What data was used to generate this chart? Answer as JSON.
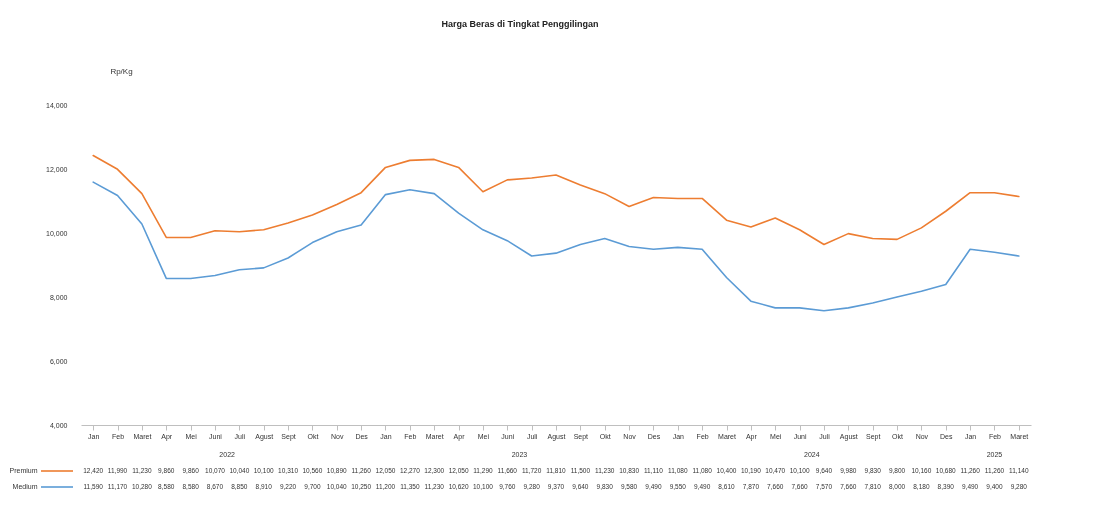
{
  "chart_data": {
    "type": "line",
    "title": "Harga Beras di Tingkat Penggilingan",
    "ylabel": "Rp/Kg",
    "categories": [
      "Jan",
      "Feb",
      "Maret",
      "Apr",
      "Mei",
      "Juni",
      "Juli",
      "Agust",
      "Sept",
      "Okt",
      "Nov",
      "Des",
      "Jan",
      "Feb",
      "Maret",
      "Apr",
      "Mei",
      "Juni",
      "Juli",
      "Agust",
      "Sept",
      "Okt",
      "Nov",
      "Des",
      "Jan",
      "Feb",
      "Maret",
      "Apr",
      "Mei",
      "Juni",
      "Juli",
      "Agust",
      "Sept",
      "Okt",
      "Nov",
      "Des",
      "Jan",
      "Feb",
      "Maret"
    ],
    "series": [
      {
        "name": "Premium",
        "color": "#ed7d31",
        "values": [
          12420,
          11990,
          11230,
          9860,
          9860,
          10070,
          10040,
          10100,
          10310,
          10560,
          10890,
          11260,
          12050,
          12270,
          12300,
          12050,
          11290,
          11660,
          11720,
          11810,
          11500,
          11230,
          10830,
          11110,
          11080,
          11080,
          10400,
          10190,
          10470,
          10100,
          9640,
          9980,
          9830,
          9800,
          10160,
          10680,
          11260,
          11260,
          11140
        ],
        "value_labels": [
          "12,420",
          "11,990",
          "11,230",
          "9,860",
          "9,860",
          "10,070",
          "10,040",
          "10,100",
          "10,310",
          "10,560",
          "10,890",
          "11,260",
          "12,050",
          "12,270",
          "12,300",
          "12,050",
          "11,290",
          "11,660",
          "11,720",
          "11,810",
          "11,500",
          "11,230",
          "10,830",
          "11,110",
          "11,080",
          "11,080",
          "10,400",
          "10,190",
          "10,470",
          "10,100",
          "9,640",
          "9,980",
          "9,830",
          "9,800",
          "10,160",
          "10,680",
          "11,260",
          "11,260",
          "11,140"
        ]
      },
      {
        "name": "Medium",
        "color": "#5b9bd5",
        "values": [
          11590,
          11170,
          10280,
          8580,
          8580,
          8670,
          8850,
          8910,
          9220,
          9700,
          10040,
          10250,
          11200,
          11350,
          11230,
          10620,
          10100,
          9760,
          9280,
          9370,
          9640,
          9830,
          9580,
          9490,
          9550,
          9490,
          8610,
          7870,
          7660,
          7660,
          7570,
          7660,
          7810,
          8000,
          8180,
          8390,
          9490,
          9400,
          9280
        ],
        "value_labels": [
          "11,590",
          "11,170",
          "10,280",
          "8,580",
          "8,580",
          "8,670",
          "8,850",
          "8,910",
          "9,220",
          "9,700",
          "10,040",
          "10,250",
          "11,200",
          "11,350",
          "11,230",
          "10,620",
          "10,100",
          "9,760",
          "9,280",
          "9,370",
          "9,640",
          "9,830",
          "9,580",
          "9,490",
          "9,550",
          "9,490",
          "8,610",
          "7,870",
          "7,660",
          "7,660",
          "7,570",
          "7,660",
          "7,810",
          "8,000",
          "8,180",
          "8,390",
          "9,490",
          "9,400",
          "9,280"
        ]
      }
    ],
    "annotations": [
      "2022",
      "2023",
      "2024",
      "2025"
    ],
    "ylim": [
      4000,
      14000
    ],
    "yticks": [
      {
        "value": 4000,
        "label": "4,000"
      },
      {
        "value": 6000,
        "label": "6,000"
      },
      {
        "value": 8000,
        "label": "8,000"
      },
      {
        "value": 10000,
        "label": "10,000"
      },
      {
        "value": 12000,
        "label": "12,000"
      },
      {
        "value": 14000,
        "label": "14,000"
      }
    ],
    "grid": false,
    "legend": "bottom",
    "line_style": "solid",
    "marker": "none"
  }
}
